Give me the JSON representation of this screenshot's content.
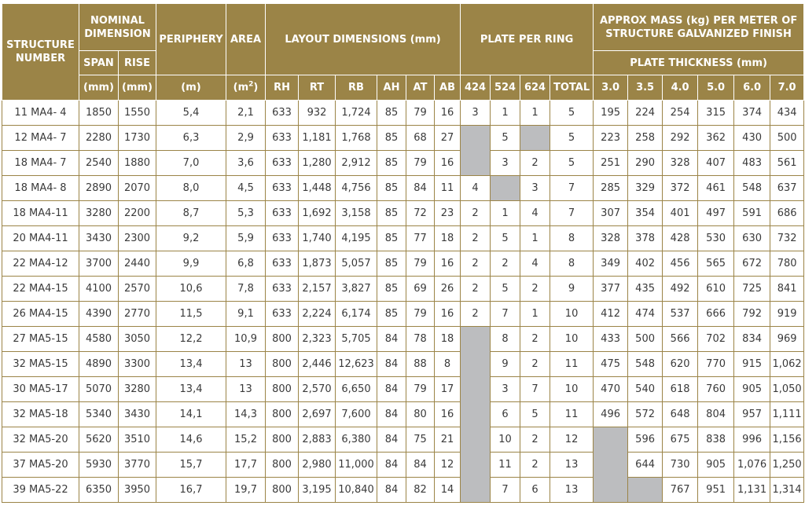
{
  "header": {
    "structure_number": "STRUCTURE NUMBER",
    "nominal_dimension": "NOMINAL DIMENSION",
    "span": "SPAN",
    "rise": "RISE",
    "span_unit": "(mm)",
    "rise_unit": "(mm)",
    "periphery": "PERIPHERY",
    "periphery_unit": "(m)",
    "area": "AREA",
    "area_unit_base": "(m",
    "area_unit_exp": "2",
    "area_unit_close": ")",
    "layout_dimensions": "LAYOUT DIMENSIONS (mm)",
    "plate_per_ring": "PLATE PER RING",
    "approx_mass": "APPROX MASS (kg) PER METER OF STRUCTURE GALVANIZED FINISH",
    "plate_thickness": "PLATE THICKNESS (mm)",
    "layout_cols": [
      "RH",
      "RT",
      "RB",
      "AH",
      "AT",
      "AB"
    ],
    "plate_cols": [
      "424",
      "524",
      "624",
      "TOTAL"
    ],
    "thickness_cols": [
      "3.0",
      "3.5",
      "4.0",
      "5.0",
      "6.0",
      "7.0"
    ]
  },
  "rows": [
    [
      "11 MA4- 4",
      "1850",
      "1550",
      "5,4",
      "2,1",
      "633",
      "932",
      "1,724",
      "85",
      "79",
      "16",
      "3",
      "1",
      "1",
      "5",
      "195",
      "224",
      "254",
      "315",
      "374",
      "434"
    ],
    [
      "12 MA4- 7",
      "2280",
      "1730",
      "6,3",
      "2,9",
      "633",
      "1,181",
      "1,768",
      "85",
      "68",
      "27",
      null,
      "5",
      null,
      "5",
      "223",
      "258",
      "292",
      "362",
      "430",
      "500"
    ],
    [
      "18 MA4- 7",
      "2540",
      "1880",
      "7,0",
      "3,6",
      "633",
      "1,280",
      "2,912",
      "85",
      "79",
      "16",
      null,
      "3",
      "2",
      "5",
      "251",
      "290",
      "328",
      "407",
      "483",
      "561"
    ],
    [
      "18 MA4- 8",
      "2890",
      "2070",
      "8,0",
      "4,5",
      "633",
      "1,448",
      "4,756",
      "85",
      "84",
      "11",
      "4",
      null,
      "3",
      "7",
      "285",
      "329",
      "372",
      "461",
      "548",
      "637"
    ],
    [
      "18 MA4-11",
      "3280",
      "2200",
      "8,7",
      "5,3",
      "633",
      "1,692",
      "3,158",
      "85",
      "72",
      "23",
      "2",
      "1",
      "4",
      "7",
      "307",
      "354",
      "401",
      "497",
      "591",
      "686"
    ],
    [
      "20 MA4-11",
      "3430",
      "2300",
      "9,2",
      "5,9",
      "633",
      "1,740",
      "4,195",
      "85",
      "77",
      "18",
      "2",
      "5",
      "1",
      "8",
      "328",
      "378",
      "428",
      "530",
      "630",
      "732"
    ],
    [
      "22 MA4-12",
      "3700",
      "2440",
      "9,9",
      "6,8",
      "633",
      "1,873",
      "5,057",
      "85",
      "79",
      "16",
      "2",
      "2",
      "4",
      "8",
      "349",
      "402",
      "456",
      "565",
      "672",
      "780"
    ],
    [
      "22 MA4-15",
      "4100",
      "2570",
      "10,6",
      "7,8",
      "633",
      "2,157",
      "3,827",
      "85",
      "69",
      "26",
      "2",
      "5",
      "2",
      "9",
      "377",
      "435",
      "492",
      "610",
      "725",
      "841"
    ],
    [
      "26 MA4-15",
      "4390",
      "2770",
      "11,5",
      "9,1",
      "633",
      "2,224",
      "6,174",
      "85",
      "79",
      "16",
      "2",
      "7",
      "1",
      "10",
      "412",
      "474",
      "537",
      "666",
      "792",
      "919"
    ],
    [
      "27 MA5-15",
      "4580",
      "3050",
      "12,2",
      "10,9",
      "800",
      "2,323",
      "5,705",
      "84",
      "78",
      "18",
      null,
      "8",
      "2",
      "10",
      "433",
      "500",
      "566",
      "702",
      "834",
      "969"
    ],
    [
      "32 MA5-15",
      "4890",
      "3300",
      "13,4",
      "13",
      "800",
      "2,446",
      "12,623",
      "84",
      "88",
      "8",
      null,
      "9",
      "2",
      "11",
      "475",
      "548",
      "620",
      "770",
      "915",
      "1,062"
    ],
    [
      "30 MA5-17",
      "5070",
      "3280",
      "13,4",
      "13",
      "800",
      "2,570",
      "6,650",
      "84",
      "79",
      "17",
      null,
      "3",
      "7",
      "10",
      "470",
      "540",
      "618",
      "760",
      "905",
      "1,050"
    ],
    [
      "32 MA5-18",
      "5340",
      "3430",
      "14,1",
      "14,3",
      "800",
      "2,697",
      "7,600",
      "84",
      "80",
      "16",
      null,
      "6",
      "5",
      "11",
      "496",
      "572",
      "648",
      "804",
      "957",
      "1,111"
    ],
    [
      "32 MA5-20",
      "5620",
      "3510",
      "14,6",
      "15,2",
      "800",
      "2,883",
      "6,380",
      "84",
      "75",
      "21",
      null,
      "10",
      "2",
      "12",
      null,
      "596",
      "675",
      "838",
      "996",
      "1,156"
    ],
    [
      "37 MA5-20",
      "5930",
      "3770",
      "15,7",
      "17,7",
      "800",
      "2,980",
      "11,000",
      "84",
      "84",
      "12",
      null,
      "11",
      "2",
      "13",
      null,
      "644",
      "730",
      "905",
      "1,076",
      "1,250"
    ],
    [
      "39 MA5-22",
      "6350",
      "3950",
      "16,7",
      "19,7",
      "800",
      "3,195",
      "10,840",
      "84",
      "82",
      "14",
      null,
      "7",
      "6",
      "13",
      null,
      null,
      "767",
      "951",
      "1,131",
      "1,314"
    ]
  ],
  "colors": {
    "header_bg": "#9b8447",
    "header_text": "#ffffff",
    "border": "#9b8447",
    "shaded_cell": "#bcbdbf",
    "body_text": "#3a3a3a"
  }
}
